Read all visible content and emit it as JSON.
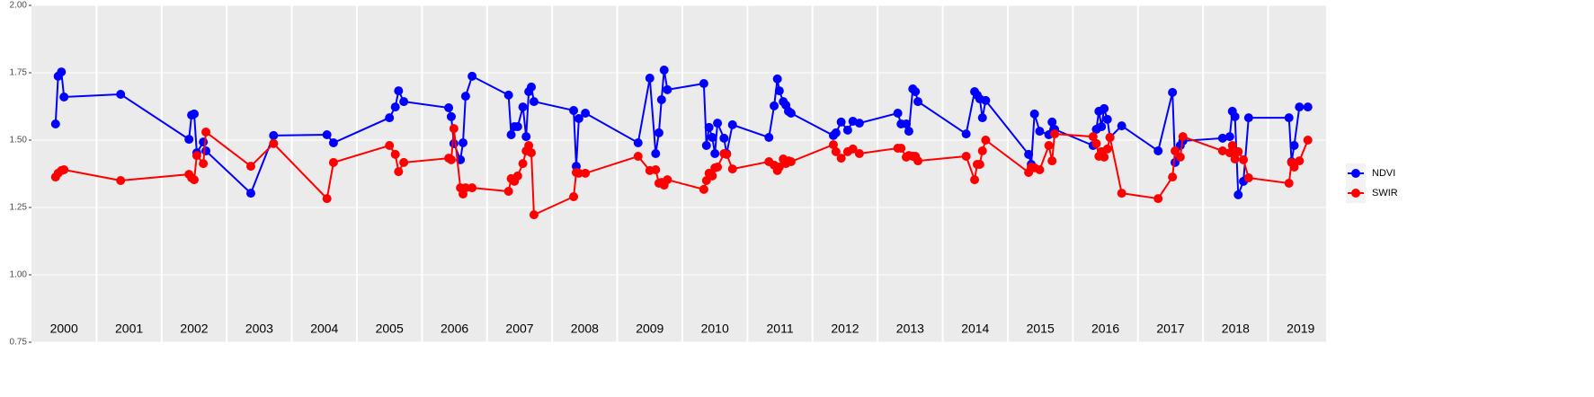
{
  "chart_data": {
    "type": "line",
    "x": [
      2000.37,
      2000.41,
      2000.46,
      2000.5,
      2001.37,
      2002.42,
      2002.46,
      2002.5,
      2002.54,
      2002.64,
      2002.68,
      2003.37,
      2003.72,
      2004.54,
      2004.64,
      2005.5,
      2005.59,
      2005.64,
      2005.72,
      2006.41,
      2006.45,
      2006.49,
      2006.59,
      2006.63,
      2006.67,
      2006.77,
      2007.33,
      2007.37,
      2007.42,
      2007.47,
      2007.55,
      2007.6,
      2007.64,
      2007.68,
      2007.72,
      2008.33,
      2008.37,
      2008.41,
      2008.51,
      2009.32,
      2009.5,
      2009.59,
      2009.64,
      2009.68,
      2009.72,
      2009.77,
      2010.33,
      2010.37,
      2010.41,
      2010.46,
      2010.5,
      2010.54,
      2010.64,
      2010.68,
      2010.77,
      2011.33,
      2011.41,
      2011.46,
      2011.49,
      2011.55,
      2011.59,
      2011.63,
      2011.67,
      2012.32,
      2012.36,
      2012.44,
      2012.54,
      2012.62,
      2012.72,
      2013.31,
      2013.36,
      2013.44,
      2013.48,
      2013.54,
      2013.58,
      2013.62,
      2014.36,
      2014.49,
      2014.53,
      2014.57,
      2014.61,
      2014.66,
      2015.32,
      2015.36,
      2015.41,
      2015.49,
      2015.63,
      2015.68,
      2015.72,
      2016.31,
      2016.36,
      2016.4,
      2016.44,
      2016.48,
      2016.53,
      2016.57,
      2016.75,
      2017.31,
      2017.53,
      2017.57,
      2017.65,
      2017.69,
      2018.3,
      2018.41,
      2018.45,
      2018.49,
      2018.54,
      2018.62,
      2018.7,
      2019.32,
      2019.36,
      2019.4,
      2019.48,
      2019.61
    ],
    "series": [
      {
        "name": "NDVI",
        "color": "#0000ff",
        "values": [
          1.56,
          1.737,
          1.753,
          1.66,
          1.67,
          1.503,
          1.593,
          1.597,
          1.453,
          1.493,
          1.46,
          1.303,
          1.517,
          1.52,
          1.49,
          1.583,
          1.623,
          1.683,
          1.643,
          1.62,
          1.587,
          1.487,
          1.427,
          1.49,
          1.663,
          1.737,
          1.667,
          1.52,
          1.55,
          1.55,
          1.623,
          1.513,
          1.68,
          1.697,
          1.643,
          1.61,
          1.403,
          1.58,
          1.6,
          1.49,
          1.73,
          1.45,
          1.527,
          1.65,
          1.76,
          1.687,
          1.71,
          1.48,
          1.547,
          1.51,
          1.45,
          1.563,
          1.507,
          1.45,
          1.557,
          1.51,
          1.627,
          1.727,
          1.683,
          1.643,
          1.63,
          1.607,
          1.6,
          1.517,
          1.527,
          1.567,
          1.537,
          1.57,
          1.563,
          1.6,
          1.56,
          1.56,
          1.533,
          1.69,
          1.68,
          1.643,
          1.523,
          1.68,
          1.667,
          1.653,
          1.583,
          1.647,
          1.447,
          1.41,
          1.597,
          1.533,
          1.52,
          1.567,
          1.54,
          1.48,
          1.54,
          1.607,
          1.55,
          1.617,
          1.577,
          1.51,
          1.553,
          1.46,
          1.677,
          1.417,
          1.48,
          1.497,
          1.507,
          1.513,
          1.607,
          1.587,
          1.297,
          1.347,
          1.583,
          1.583,
          1.42,
          1.48,
          1.623,
          1.623
        ]
      },
      {
        "name": "SWIR",
        "color": "#ff0000",
        "values": [
          1.363,
          1.377,
          1.387,
          1.39,
          1.35,
          1.373,
          1.36,
          1.353,
          1.443,
          1.413,
          1.53,
          1.403,
          1.487,
          1.283,
          1.417,
          1.48,
          1.447,
          1.383,
          1.417,
          1.433,
          1.427,
          1.543,
          1.323,
          1.3,
          1.323,
          1.323,
          1.31,
          1.357,
          1.347,
          1.367,
          1.413,
          1.46,
          1.48,
          1.453,
          1.223,
          1.29,
          1.38,
          1.377,
          1.377,
          1.44,
          1.387,
          1.39,
          1.34,
          1.343,
          1.333,
          1.353,
          1.317,
          1.35,
          1.377,
          1.367,
          1.397,
          1.4,
          1.45,
          1.447,
          1.393,
          1.42,
          1.407,
          1.387,
          1.4,
          1.43,
          1.413,
          1.423,
          1.42,
          1.483,
          1.457,
          1.433,
          1.457,
          1.467,
          1.45,
          1.47,
          1.47,
          1.437,
          1.443,
          1.44,
          1.44,
          1.423,
          1.44,
          1.353,
          1.41,
          1.41,
          1.46,
          1.5,
          1.38,
          1.4,
          1.397,
          1.39,
          1.48,
          1.423,
          1.523,
          1.513,
          1.487,
          1.44,
          1.457,
          1.437,
          1.467,
          1.51,
          1.303,
          1.283,
          1.363,
          1.46,
          1.437,
          1.513,
          1.46,
          1.453,
          1.48,
          1.43,
          1.457,
          1.427,
          1.36,
          1.34,
          1.417,
          1.4,
          1.423,
          1.5
        ]
      }
    ],
    "xlim": [
      2000,
      2019.89
    ],
    "ylim": [
      0.75,
      2.0
    ],
    "yticks": [
      0.75,
      {
        "value": 1.0,
        "label": "1.00"
      },
      1.25,
      {
        "value": 1.5,
        "label": "1.50"
      },
      1.75,
      {
        "value": 2.0,
        "label": "2.00"
      }
    ],
    "vlines": [
      2001,
      2002,
      2003,
      2004,
      2005,
      2006,
      2007,
      2008,
      2009,
      2010,
      2011,
      2012,
      2013,
      2014,
      2015,
      2016,
      2017,
      2018,
      2019
    ],
    "year_labels": [
      {
        "value": 2000.5,
        "label": "2000"
      },
      {
        "value": 2001.5,
        "label": "2001"
      },
      {
        "value": 2002.5,
        "label": "2002"
      },
      {
        "value": 2003.5,
        "label": "2003"
      },
      {
        "value": 2004.5,
        "label": "2004"
      },
      {
        "value": 2005.5,
        "label": "2005"
      },
      {
        "value": 2006.5,
        "label": "2006"
      },
      {
        "value": 2007.5,
        "label": "2007"
      },
      {
        "value": 2008.5,
        "label": "2008"
      },
      {
        "value": 2009.5,
        "label": "2009"
      },
      {
        "value": 2010.5,
        "label": "2010"
      },
      {
        "value": 2011.5,
        "label": "2011"
      },
      {
        "value": 2012.5,
        "label": "2012"
      },
      {
        "value": 2013.5,
        "label": "2013"
      },
      {
        "value": 2014.5,
        "label": "2014"
      },
      {
        "value": 2015.5,
        "label": "2015"
      },
      {
        "value": 2016.5,
        "label": "2016"
      },
      {
        "value": 2017.5,
        "label": "2017"
      },
      {
        "value": 2018.5,
        "label": "2018"
      },
      {
        "value": 2019.5,
        "label": "2019"
      }
    ],
    "grid": true,
    "legend": "right"
  }
}
